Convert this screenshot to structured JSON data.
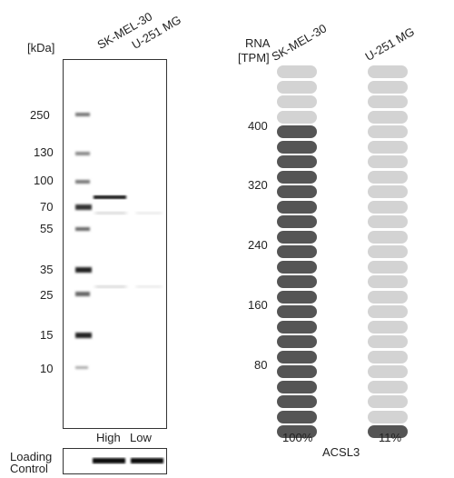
{
  "blot": {
    "kda_label": "[kDa]",
    "lanes": [
      "SK-MEL-30",
      "U-251 MG"
    ],
    "markers": [
      "250",
      "130",
      "100",
      "70",
      "55",
      "35",
      "25",
      "15",
      "10"
    ],
    "expression": [
      "High",
      "Low"
    ],
    "loading_control": [
      "Loading",
      "Control"
    ]
  },
  "rna": {
    "header": [
      "RNA",
      "[TPM]"
    ],
    "cell_lines": [
      "SK-MEL-30",
      "U-251 MG"
    ],
    "ticks": [
      "400",
      "320",
      "240",
      "160",
      "80"
    ],
    "percents": [
      "100%",
      "11%"
    ],
    "gene": "ACSL3",
    "filled_counts": [
      21,
      1
    ],
    "total_segments": 25,
    "colors": {
      "filled": "#555555",
      "empty": "#d3d3d3"
    }
  }
}
